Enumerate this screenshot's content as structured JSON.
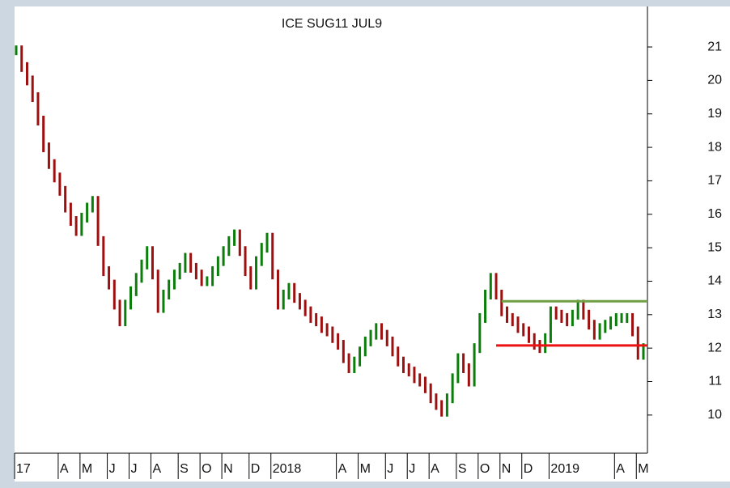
{
  "chart_data": {
    "type": "price-bars",
    "title": "ICE SUG11 JUL9",
    "categories": [
      "17",
      null,
      null,
      null,
      null,
      null,
      null,
      null,
      "A",
      null,
      null,
      null,
      "M",
      null,
      null,
      null,
      null,
      "J",
      null,
      null,
      null,
      "J",
      null,
      null,
      null,
      "A",
      null,
      null,
      null,
      null,
      "S",
      null,
      null,
      null,
      "O",
      null,
      null,
      null,
      "N",
      null,
      null,
      null,
      null,
      "D",
      null,
      null,
      null,
      "2018",
      null,
      null,
      null,
      null,
      null,
      null,
      null,
      null,
      null,
      null,
      null,
      "A",
      null,
      null,
      null,
      "M",
      null,
      null,
      null,
      null,
      "J",
      null,
      null,
      null,
      "J",
      null,
      null,
      null,
      "A",
      null,
      null,
      null,
      null,
      "S",
      null,
      null,
      null,
      "O",
      null,
      null,
      null,
      "N",
      null,
      null,
      null,
      "D",
      null,
      null,
      null,
      null,
      "2019",
      null,
      null,
      null,
      null,
      null,
      null,
      null,
      null,
      null,
      null,
      null,
      "A",
      null,
      null,
      null,
      "M",
      null
    ],
    "values": [
      20.9,
      20.4,
      20.0,
      19.5,
      18.8,
      18.0,
      17.5,
      17.1,
      16.7,
      16.2,
      15.8,
      15.5,
      15.9,
      16.2,
      16.4,
      15.2,
      14.3,
      13.9,
      13.3,
      12.8,
      13.3,
      13.7,
      14.1,
      14.5,
      14.9,
      14.2,
      13.2,
      13.6,
      13.9,
      14.2,
      14.4,
      14.7,
      14.4,
      14.2,
      14.0,
      14.0,
      14.3,
      14.6,
      14.9,
      15.2,
      15.4,
      14.9,
      14.3,
      13.9,
      14.6,
      15.0,
      15.3,
      14.2,
      13.3,
      13.6,
      13.8,
      13.5,
      13.3,
      13.1,
      12.9,
      12.8,
      12.6,
      12.5,
      12.3,
      12.1,
      11.7,
      11.4,
      11.6,
      11.9,
      12.2,
      12.4,
      12.6,
      12.4,
      12.2,
      11.9,
      11.6,
      11.4,
      11.3,
      11.1,
      11.0,
      10.8,
      10.5,
      10.3,
      10.1,
      10.5,
      11.1,
      11.7,
      11.4,
      11.0,
      12.0,
      12.9,
      13.6,
      14.1,
      13.6,
      13.1,
      12.9,
      12.8,
      12.6,
      12.5,
      12.3,
      12.1,
      12.0,
      12.3,
      13.1,
      13.0,
      12.9,
      12.8,
      13.0,
      13.3,
      13.0,
      12.7,
      12.4,
      12.6,
      12.7,
      12.8,
      12.9,
      12.9,
      12.9,
      12.5,
      11.8,
      12.0
    ],
    "up_color": "#0b7d0b",
    "down_color": "#9e1010",
    "ylim": [
      8.86,
      22.21
    ],
    "yticks": [
      10,
      11,
      12,
      13,
      14,
      15,
      16,
      17,
      18,
      19,
      20,
      21
    ],
    "hlines": [
      {
        "value": 13.4,
        "color": "#6f9f42",
        "start_index": 89
      },
      {
        "value": 12.08,
        "color": "#ee1111",
        "start_index": 88
      }
    ]
  }
}
